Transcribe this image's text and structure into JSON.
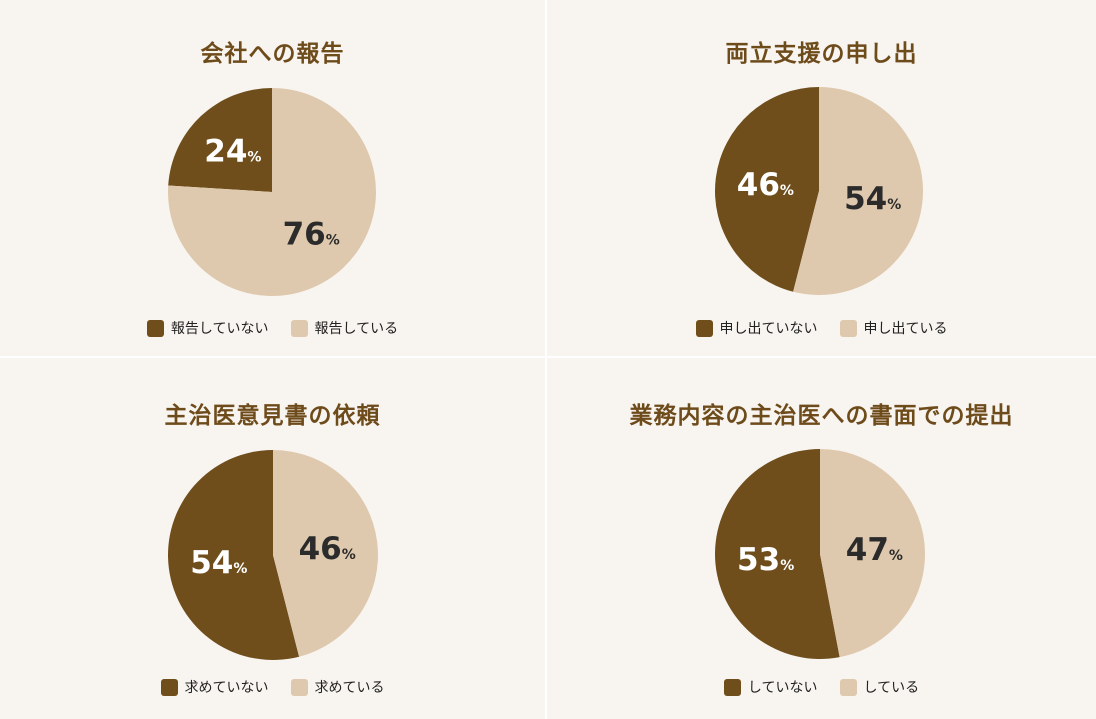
{
  "colors": {
    "dark": "#6f4e1c",
    "light": "#dfc9ae",
    "title": "#6e4b1b",
    "dark_text": "#ffffff",
    "light_text": "#2b2b2b"
  },
  "chart_data": [
    {
      "type": "pie",
      "title": "会社への報告",
      "slices": [
        {
          "label": "報告していない",
          "value": 24,
          "color": "#6f4e1c"
        },
        {
          "label": "報告している",
          "value": 76,
          "color": "#dfc9ae"
        }
      ],
      "legend": "bottom"
    },
    {
      "type": "pie",
      "title": "両立支援の申し出",
      "slices": [
        {
          "label": "申し出ていない",
          "value": 46,
          "color": "#6f4e1c"
        },
        {
          "label": "申し出ている",
          "value": 54,
          "color": "#dfc9ae"
        }
      ],
      "legend": "bottom"
    },
    {
      "type": "pie",
      "title": "主治医意見書の依頼",
      "slices": [
        {
          "label": "求めていない",
          "value": 54,
          "color": "#6f4e1c"
        },
        {
          "label": "求めている",
          "value": 46,
          "color": "#dfc9ae"
        }
      ],
      "legend": "bottom"
    },
    {
      "type": "pie",
      "title": "業務内容の主治医への書面での提出",
      "slices": [
        {
          "label": "していない",
          "value": 53,
          "color": "#6f4e1c"
        },
        {
          "label": "している",
          "value": 47,
          "color": "#dfc9ae"
        }
      ],
      "legend": "bottom"
    }
  ],
  "percent_symbol": "%"
}
